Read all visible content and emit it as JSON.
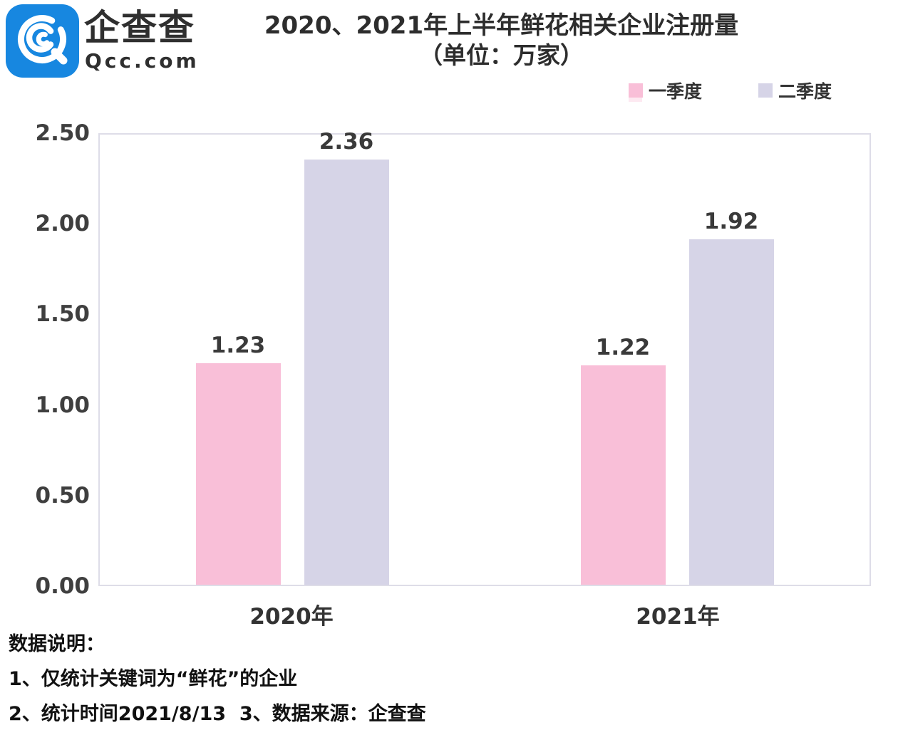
{
  "brand": {
    "name_cn": "企查查",
    "domain": "Qcc.com"
  },
  "title": {
    "line1": "2020、2021年上半年鲜花相关企业注册量",
    "line2": "（单位：万家）"
  },
  "legend": [
    {
      "label": "一季度",
      "color": "#f9bfd8"
    },
    {
      "label": "二季度",
      "color": "#d6d4e7"
    }
  ],
  "chart_data": {
    "type": "bar",
    "title": "2020、2021年上半年鲜花相关企业注册量（单位：万家）",
    "categories": [
      "2020年",
      "2021年"
    ],
    "series": [
      {
        "name": "一季度",
        "color": "#f9bfd8",
        "values": [
          1.23,
          1.22
        ]
      },
      {
        "name": "二季度",
        "color": "#d6d4e7",
        "values": [
          2.36,
          1.92
        ]
      }
    ],
    "xlabel": "",
    "ylabel": "",
    "ylim": [
      0,
      2.5
    ],
    "yticks": [
      "2.50",
      "2.00",
      "1.50",
      "1.00",
      "0.50",
      "0.00"
    ],
    "grid": false,
    "legend_position": "top-right",
    "unit": "万家"
  },
  "notes": {
    "heading": "数据说明：",
    "line1": "1、仅统计关键词为“鲜花”的企业",
    "line2": "2、统计时间2021/8/13  3、数据来源：企查查"
  },
  "colors": {
    "brand_blue": "#1787e0",
    "bar_pink": "#f9bfd8",
    "bar_lavender": "#d6d4e7",
    "plot_border": "#deddE8",
    "title_text": "#2d2d2d",
    "axis_text": "#3f3f3f",
    "notes_text": "#111111"
  }
}
